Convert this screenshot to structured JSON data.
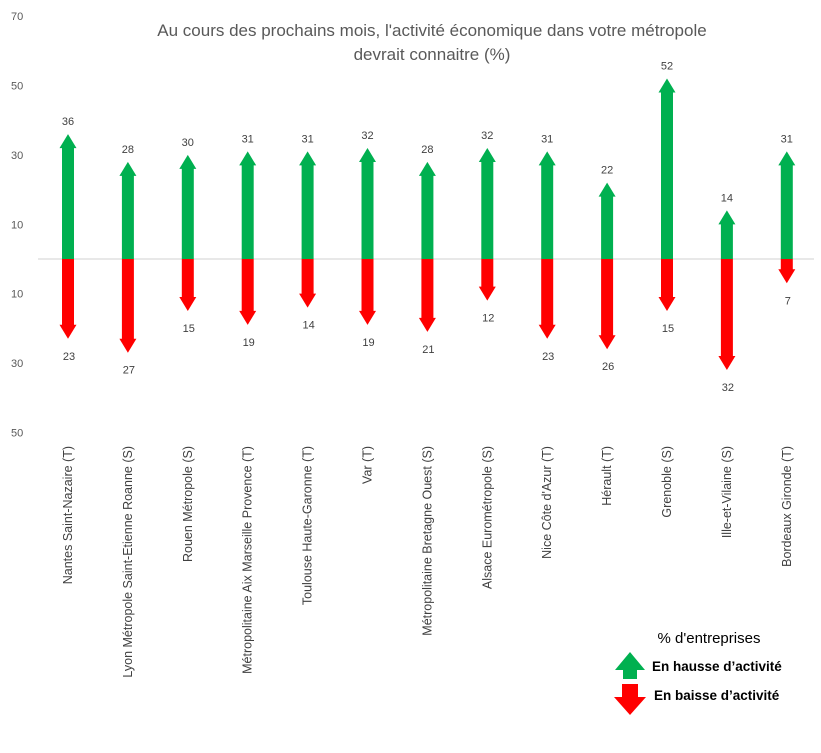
{
  "chart_data": {
    "type": "bar",
    "title_lines": [
      "Au cours des prochains mois, l'activité économique dans votre métropole",
      "devrait connaitre (%)"
    ],
    "categories": [
      "Nantes Saint-Nazaire (T)",
      "Lyon Métropole Saint-Etienne Roanne (S)",
      "Rouen Métropole (S)",
      "Métropolitaine Aix Marseille Provence (T)",
      "Toulouse Haute-Garonne (T)",
      "Var (T)",
      "Métropolitaine Bretagne Ouest (S)",
      "Alsace Eurométropole (S)",
      "Nice Côte d'Azur (T)",
      "Hérault (T)",
      "Grenoble (S)",
      "Ille-et-Vilaine (S)",
      "Bordeaux Gironde (T)"
    ],
    "series": [
      {
        "name": "En hausse d'activité",
        "color": "#00b050",
        "direction": "up",
        "values": [
          36,
          28,
          30,
          31,
          31,
          32,
          28,
          32,
          31,
          22,
          52,
          14,
          31
        ]
      },
      {
        "name": "En baisse d'activité",
        "color": "#ff0000",
        "direction": "down",
        "values": [
          23,
          27,
          15,
          19,
          14,
          19,
          21,
          12,
          23,
          26,
          15,
          32,
          7
        ]
      }
    ],
    "y_ticks": [
      {
        "label": "70",
        "value": 70
      },
      {
        "label": "50",
        "value": 50
      },
      {
        "label": "30",
        "value": 30
      },
      {
        "label": "10",
        "value": 10
      },
      {
        "label": "10",
        "value": -10
      },
      {
        "label": "30",
        "value": -30
      },
      {
        "label": "50",
        "value": -50
      }
    ],
    "ylim": [
      -50,
      70
    ],
    "legend": {
      "title": "% d'entreprises",
      "placement": "bottom-right",
      "items": [
        "En hausse d’activité",
        "En baisse d’activité"
      ]
    },
    "grid": false
  }
}
